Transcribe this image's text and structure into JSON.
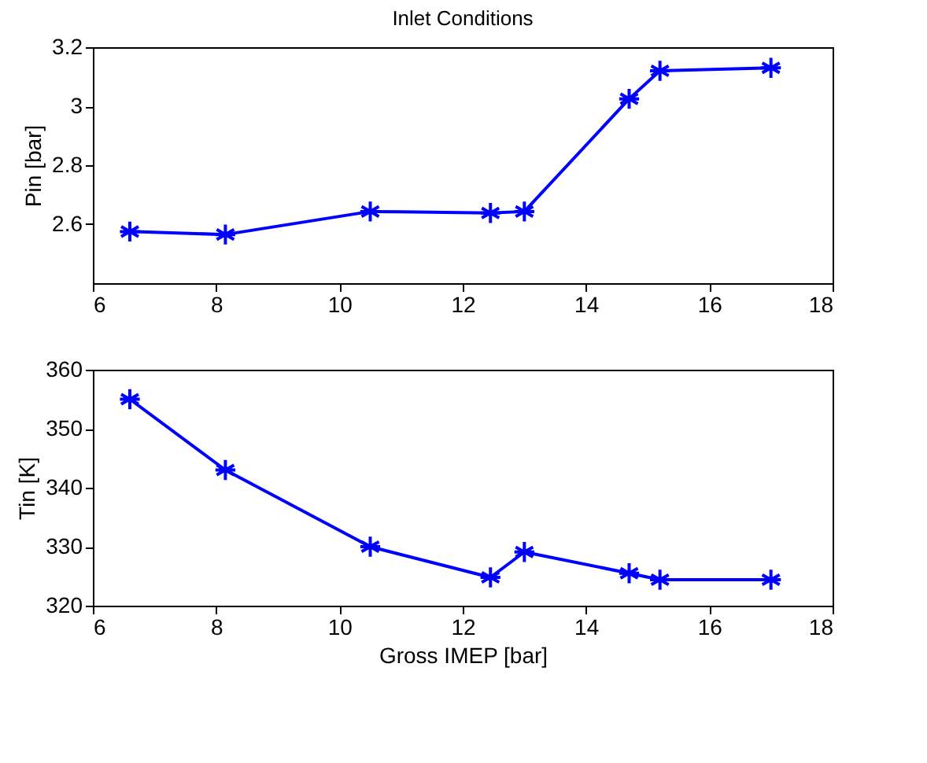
{
  "chart_data": [
    {
      "type": "line",
      "title": "Inlet Conditions",
      "ylabel": "Pin [bar]",
      "x": [
        6.6,
        8.15,
        10.5,
        12.45,
        13.0,
        14.7,
        15.2,
        17.0
      ],
      "series": [
        {
          "color": "#0000ff",
          "values": [
            2.575,
            2.565,
            2.643,
            2.638,
            2.643,
            3.025,
            3.12,
            3.13
          ]
        }
      ],
      "xlim": [
        6,
        18
      ],
      "xticks": [
        6,
        8,
        10,
        12,
        14,
        16,
        18
      ],
      "ylim": [
        2.4,
        3.2
      ],
      "yticks": [
        2.6,
        2.8,
        {
          "value": 3,
          "label": "3"
        },
        3.2
      ],
      "grid": false,
      "marker": "cross",
      "line_style": "solid"
    },
    {
      "type": "line",
      "xlabel": "Gross IMEP [bar]",
      "ylabel": "Tin [K]",
      "x": [
        6.6,
        8.15,
        10.5,
        12.45,
        13.0,
        14.7,
        15.2,
        17.0
      ],
      "series": [
        {
          "color": "#0000ff",
          "values": [
            355,
            343,
            330,
            324.8,
            329.1,
            325.5,
            324.4,
            324.4
          ]
        }
      ],
      "xlim": [
        6,
        18
      ],
      "xticks": [
        6,
        8,
        10,
        12,
        14,
        16,
        18
      ],
      "ylim": [
        320,
        360
      ],
      "yticks": [
        320,
        330,
        340,
        350,
        360
      ],
      "grid": false,
      "marker": "cross",
      "line_style": "solid"
    }
  ]
}
